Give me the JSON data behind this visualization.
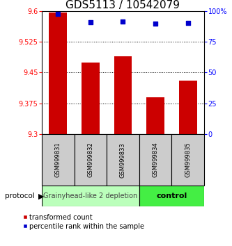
{
  "title": "GDS5113 / 10542079",
  "samples": [
    "GSM999831",
    "GSM999832",
    "GSM999833",
    "GSM999834",
    "GSM999835"
  ],
  "bar_values": [
    9.596,
    9.474,
    9.49,
    9.39,
    9.43
  ],
  "percentile_values": [
    97.5,
    91.0,
    91.5,
    90.0,
    90.5
  ],
  "bar_bottom": 9.3,
  "ylim_left": [
    9.3,
    9.6
  ],
  "ylim_right": [
    0,
    100
  ],
  "yticks_left": [
    9.3,
    9.375,
    9.45,
    9.525,
    9.6
  ],
  "yticks_right": [
    0,
    25,
    50,
    75,
    100
  ],
  "ytick_labels_left": [
    "9.3",
    "9.375",
    "9.45",
    "9.525",
    "9.6"
  ],
  "ytick_labels_right": [
    "0",
    "25",
    "50",
    "75",
    "100%"
  ],
  "bar_color": "#cc0000",
  "dot_color": "#0000cc",
  "group1_label": "Grainyhead-like 2 depletion",
  "group2_label": "control",
  "group1_color": "#bbffbb",
  "group2_color": "#44ee44",
  "group1_indices": [
    0,
    1,
    2
  ],
  "group2_indices": [
    3,
    4
  ],
  "protocol_label": "protocol",
  "legend_bar_label": "transformed count",
  "legend_dot_label": "percentile rank within the sample",
  "bar_width": 0.55,
  "title_fontsize": 11,
  "tick_fontsize": 7,
  "sample_fontsize": 6,
  "group_label_fontsize": 7,
  "legend_fontsize": 7
}
